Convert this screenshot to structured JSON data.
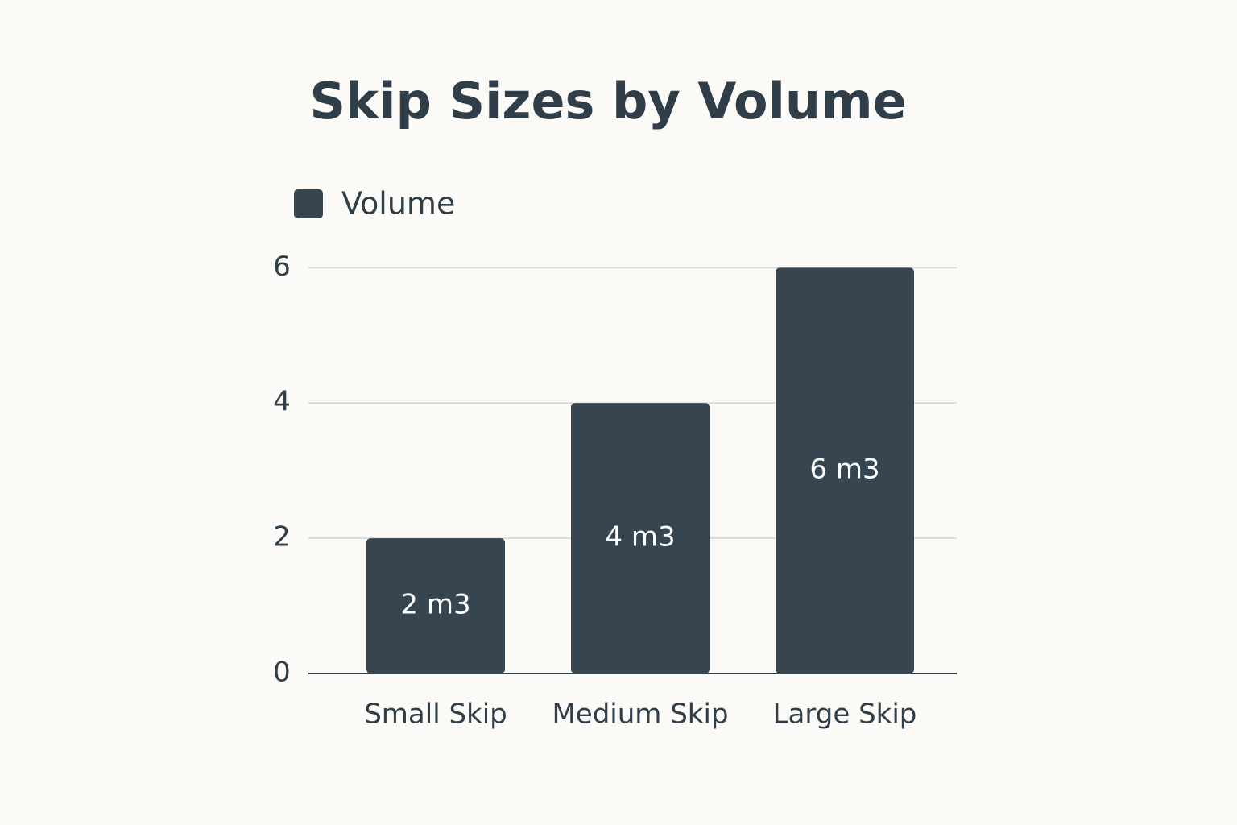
{
  "chart_data": {
    "type": "bar",
    "title": "Skip Sizes by Volume",
    "categories": [
      "Small Skip",
      "Medium Skip",
      "Large Skip"
    ],
    "series": [
      {
        "name": "Volume",
        "color": "#36454f",
        "values": [
          2,
          4,
          6
        ],
        "value_labels": [
          "2 m3",
          "4 m3",
          "6 m3"
        ]
      }
    ],
    "ylim": [
      0,
      6.6
    ],
    "yticks": [
      0,
      2,
      4,
      6
    ],
    "grid": true,
    "legend": "top-left"
  }
}
